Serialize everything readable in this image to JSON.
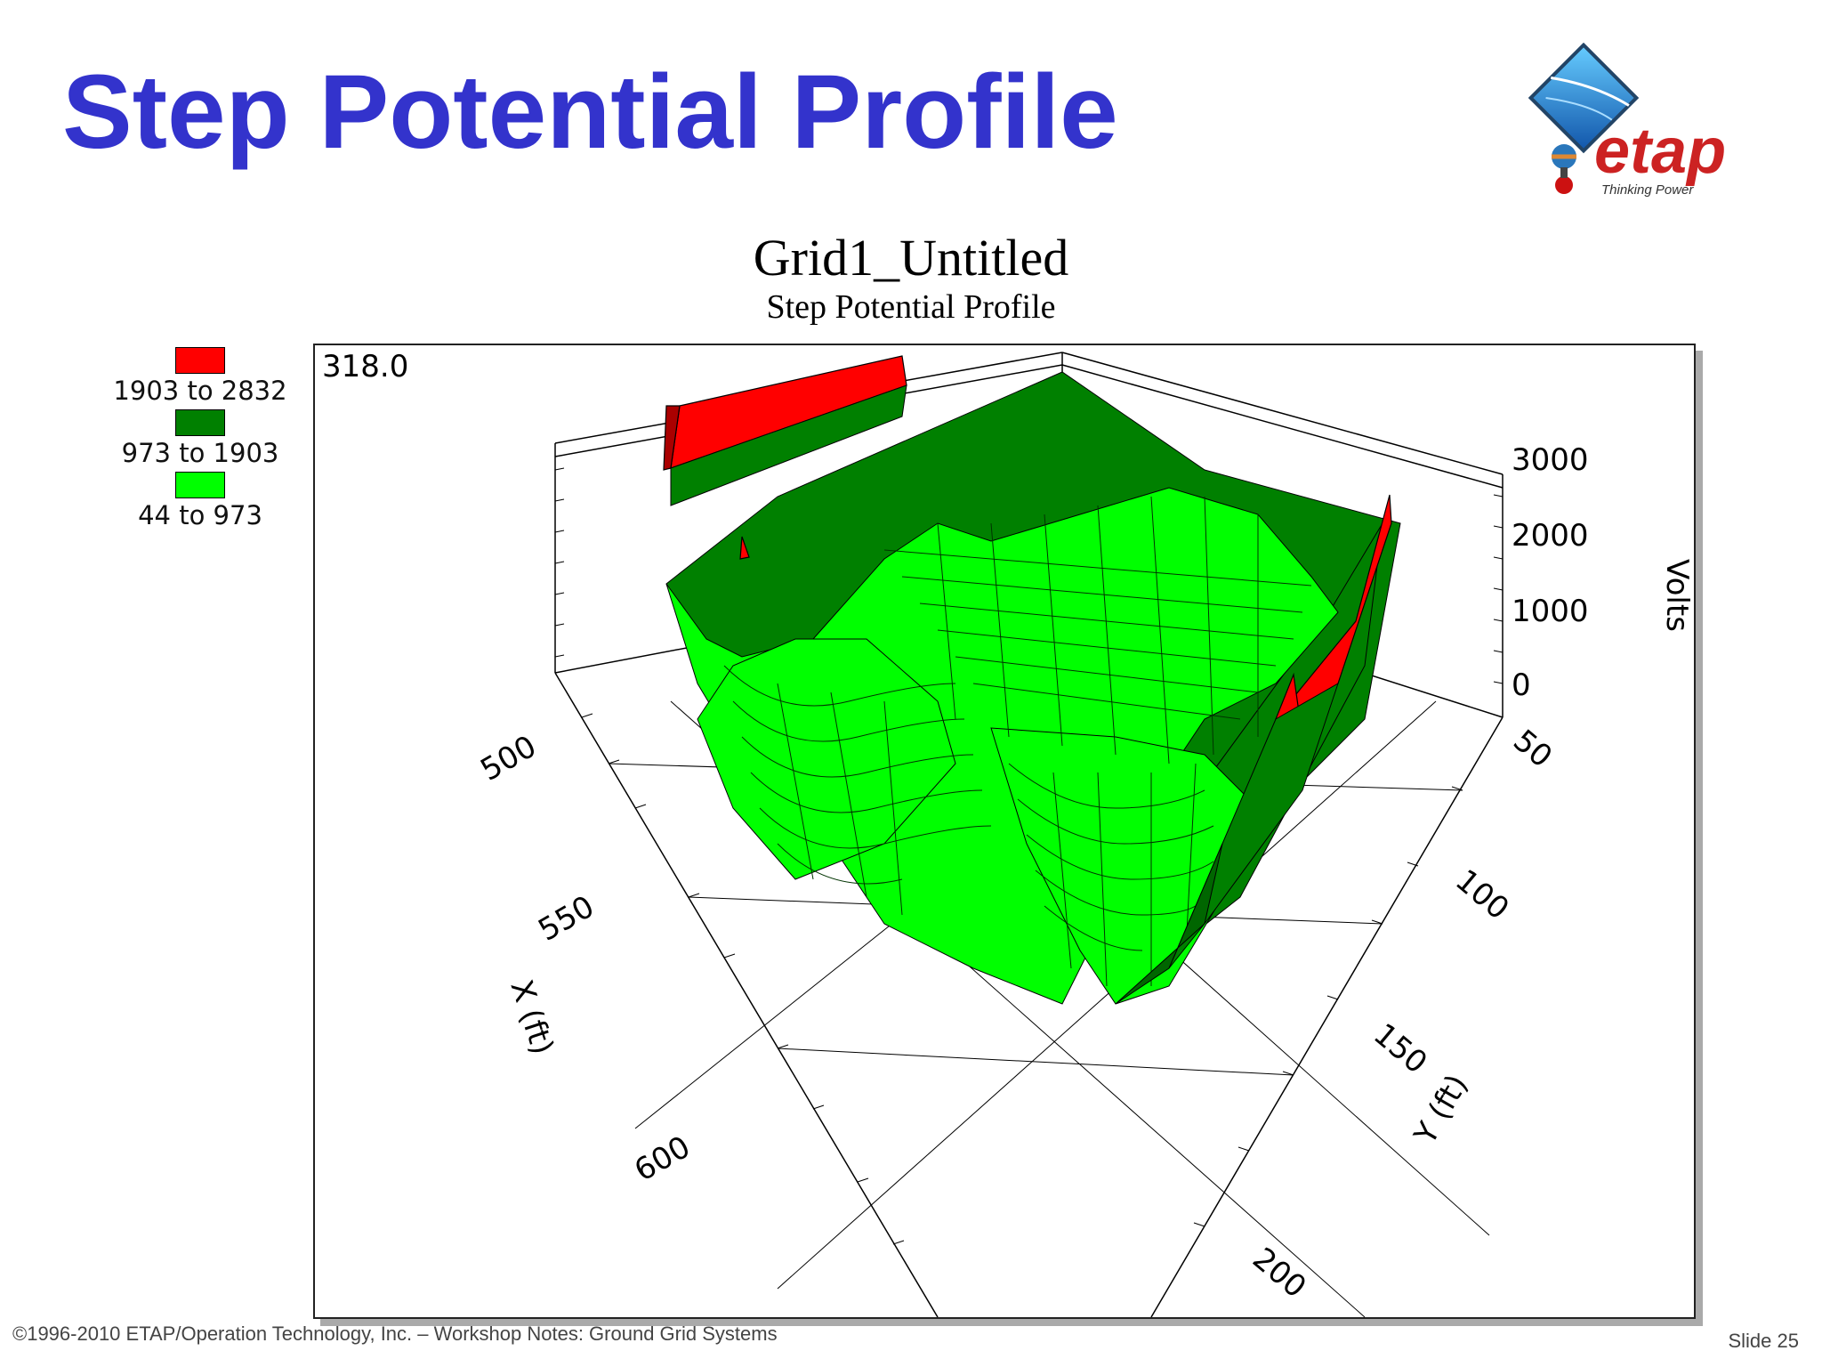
{
  "slide": {
    "title": "Step Potential Profile",
    "footer": "©1996-2010 ETAP/Operation Technology, Inc. – Workshop Notes: Ground Grid Systems",
    "slide_number": "Slide 25"
  },
  "logo": {
    "text": "etap",
    "tagline": "Thinking Power",
    "colors": {
      "text": "#cc2222",
      "globe": "#2277cc",
      "stem": "#333333"
    }
  },
  "chart_data": {
    "type": "surface3d",
    "title": "Grid1_Untitled",
    "subtitle": "Step Potential Profile",
    "corner_value": "318.0",
    "x_axis": {
      "label": "X (ft)",
      "ticks": [
        "500",
        "550",
        "600"
      ]
    },
    "y_axis": {
      "label": "Y (ft)",
      "ticks": [
        "50",
        "100",
        "150",
        "200"
      ]
    },
    "z_axis": {
      "label": "Volts",
      "ticks": [
        "0",
        "1000",
        "2000",
        "3000"
      ],
      "range": [
        0,
        3000
      ]
    },
    "legend": [
      {
        "label": "1903 to 2832",
        "color": "#ff0000"
      },
      {
        "label": "973 to 1903",
        "color": "#008000"
      },
      {
        "label": "44 to 973",
        "color": "#00ff00"
      }
    ],
    "colors": {
      "mesh_line": "#000000",
      "axis": "#000000"
    }
  }
}
